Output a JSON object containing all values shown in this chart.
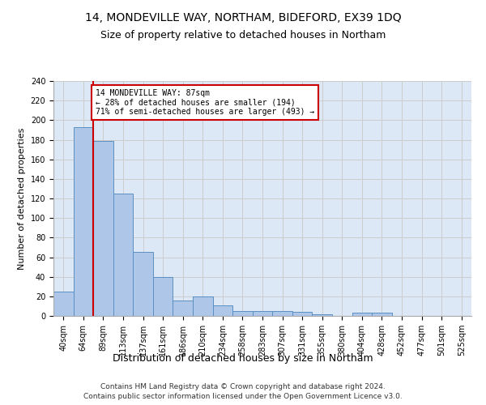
{
  "title1": "14, MONDEVILLE WAY, NORTHAM, BIDEFORD, EX39 1DQ",
  "title2": "Size of property relative to detached houses in Northam",
  "xlabel": "Distribution of detached houses by size in Northam",
  "ylabel": "Number of detached properties",
  "footnote": "Contains HM Land Registry data © Crown copyright and database right 2024.\nContains public sector information licensed under the Open Government Licence v3.0.",
  "bin_labels": [
    "40sqm",
    "64sqm",
    "89sqm",
    "113sqm",
    "137sqm",
    "161sqm",
    "186sqm",
    "210sqm",
    "234sqm",
    "258sqm",
    "283sqm",
    "307sqm",
    "331sqm",
    "355sqm",
    "380sqm",
    "404sqm",
    "428sqm",
    "452sqm",
    "477sqm",
    "501sqm",
    "525sqm"
  ],
  "bar_heights": [
    25,
    193,
    179,
    125,
    65,
    40,
    16,
    20,
    11,
    5,
    5,
    5,
    4,
    2,
    0,
    3,
    3,
    0,
    0,
    0,
    0
  ],
  "bar_color": "#aec6e8",
  "bar_edge_color": "#5a8fc2",
  "red_line_color": "#cc0000",
  "annotation_text": "14 MONDEVILLE WAY: 87sqm\n← 28% of detached houses are smaller (194)\n71% of semi-detached houses are larger (493) →",
  "annotation_box_color": "white",
  "annotation_box_edge": "#cc0000",
  "ylim": [
    0,
    240
  ],
  "yticks": [
    0,
    20,
    40,
    60,
    80,
    100,
    120,
    140,
    160,
    180,
    200,
    220,
    240
  ],
  "grid_color": "#cccccc",
  "bg_color": "#dce8f5",
  "title1_fontsize": 10,
  "title2_fontsize": 9,
  "xlabel_fontsize": 9,
  "ylabel_fontsize": 8,
  "tick_fontsize": 7,
  "footnote_fontsize": 6.5
}
